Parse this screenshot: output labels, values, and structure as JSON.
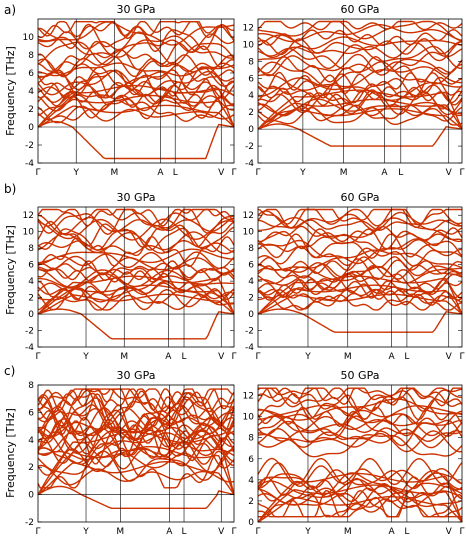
{
  "figure": {
    "row_labels": [
      "a)",
      "b)",
      "c)"
    ],
    "y_axis_label": "Frequency [THz]"
  },
  "chart_data": [
    {
      "type": "line",
      "row": "a)",
      "title": "30 GPa",
      "ylabel": "Frequency [THz]",
      "ylim": [
        -4,
        12
      ],
      "yticks": [
        -4,
        -2,
        0,
        2,
        4,
        6,
        8,
        10
      ],
      "x_ticks": [
        "Γ",
        "Y",
        "M",
        "A",
        "L",
        "V",
        "Γ"
      ],
      "x_tick_pos": [
        0,
        0.195,
        0.39,
        0.625,
        0.7,
        0.935,
        1.0
      ],
      "soft_mode_min": -3.5,
      "band_count": 24
    },
    {
      "type": "line",
      "row": "a)",
      "title": "60 GPa",
      "ylabel": "",
      "ylim": [
        -4,
        13
      ],
      "yticks": [
        -4,
        -2,
        0,
        2,
        4,
        6,
        8,
        10,
        12
      ],
      "x_ticks": [
        "Γ",
        "Y",
        "M",
        "A",
        "L",
        "V",
        "Γ"
      ],
      "x_tick_pos": [
        0,
        0.22,
        0.42,
        0.62,
        0.7,
        0.935,
        1.0
      ],
      "soft_mode_min": -2.0,
      "band_count": 24
    },
    {
      "type": "line",
      "row": "b)",
      "title": "30 GPa",
      "ylabel": "Frequency [THz]",
      "ylim": [
        -4,
        13
      ],
      "yticks": [
        -4,
        -2,
        0,
        2,
        4,
        6,
        8,
        10,
        12
      ],
      "x_ticks": [
        "Γ",
        "Y",
        "M",
        "A",
        "L",
        "V",
        "Γ"
      ],
      "x_tick_pos": [
        0,
        0.245,
        0.44,
        0.665,
        0.745,
        0.935,
        1.0
      ],
      "soft_mode_min": -3.0,
      "band_count": 24
    },
    {
      "type": "line",
      "row": "b)",
      "title": "60 GPa",
      "ylabel": "",
      "ylim": [
        -4,
        13
      ],
      "yticks": [
        -4,
        -2,
        0,
        2,
        4,
        6,
        8,
        10,
        12
      ],
      "x_ticks": [
        "Γ",
        "Y",
        "M",
        "A",
        "L",
        "V",
        "Γ"
      ],
      "x_tick_pos": [
        0,
        0.245,
        0.44,
        0.655,
        0.73,
        0.935,
        1.0
      ],
      "soft_mode_min": -2.2,
      "band_count": 24
    },
    {
      "type": "line",
      "row": "c)",
      "title": "30 GPa",
      "ylabel": "Frequency [THz]",
      "ylim": [
        -2,
        8
      ],
      "yticks": [
        -2,
        0,
        2,
        4,
        6,
        8
      ],
      "x_ticks": [
        "Γ",
        "Y",
        "M",
        "A",
        "L",
        "V",
        "Γ"
      ],
      "x_tick_pos": [
        0,
        0.245,
        0.42,
        0.67,
        0.745,
        0.935,
        1.0
      ],
      "soft_mode_min": -1.0,
      "band_count": 28
    },
    {
      "type": "line",
      "row": "c)",
      "title": "50 GPa",
      "ylabel": "",
      "ylim": [
        0,
        13
      ],
      "yticks": [
        0,
        2,
        4,
        6,
        8,
        10,
        12
      ],
      "x_ticks": [
        "Γ",
        "Y",
        "M",
        "A",
        "L",
        "V",
        "Γ"
      ],
      "x_tick_pos": [
        0,
        0.245,
        0.44,
        0.655,
        0.73,
        0.935,
        1.0
      ],
      "soft_mode_min": null,
      "band_count": 28
    }
  ]
}
